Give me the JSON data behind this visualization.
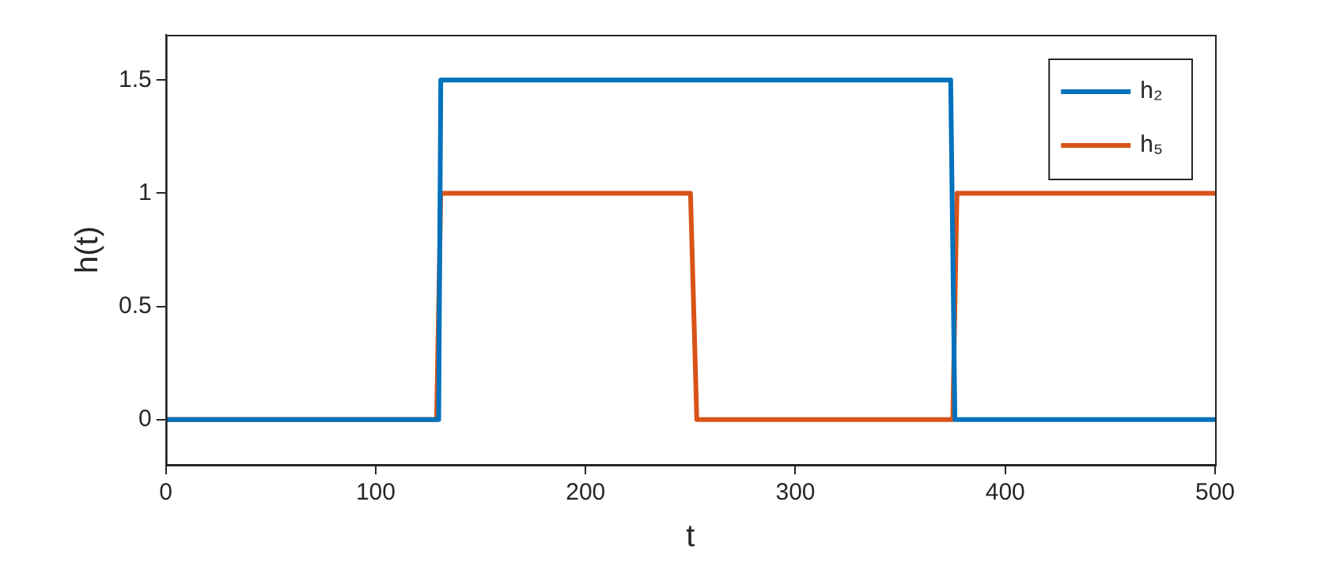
{
  "chart_data": {
    "type": "line",
    "xlabel": "t",
    "ylabel": "h(t)",
    "xlim": [
      0,
      500
    ],
    "xticks": [
      0,
      100,
      200,
      300,
      400,
      500
    ],
    "ylim": [
      -0.2,
      1.7
    ],
    "yticks": [
      0,
      0.5,
      1,
      1.5
    ],
    "grid": false,
    "legend": "top right",
    "marker": "none",
    "line_style": "solid",
    "series": [
      {
        "name": "h₂",
        "color": "#0072bd",
        "x": [
          0,
          130,
          131,
          374,
          376,
          500
        ],
        "values": [
          0,
          0,
          1.5,
          1.5,
          0,
          0
        ]
      },
      {
        "name": "h₅",
        "color": "#d95319",
        "x": [
          0,
          129,
          131,
          250,
          253,
          375,
          377,
          500
        ],
        "values": [
          0,
          0,
          1,
          1,
          0,
          0,
          1,
          1
        ]
      }
    ]
  }
}
